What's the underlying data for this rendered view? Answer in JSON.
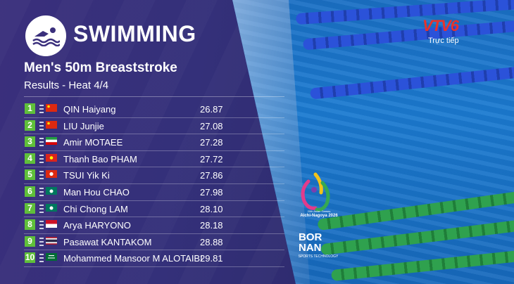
{
  "header": {
    "sport": "SWIMMING",
    "event": "Men's 50m Breaststroke",
    "stage": "Results - Heat 4/4"
  },
  "broadcaster": {
    "logo_text": "VTV6",
    "live_label": "Trực tiếp"
  },
  "games": {
    "line1": "20th Asian Games",
    "line2": "Aichi-Nagoya 2026"
  },
  "timing": {
    "brand_line1": "BOR",
    "brand_line2": "NAN",
    "tagline": "SPORTS TECHNOLOGY"
  },
  "results": [
    {
      "rank": "1",
      "name": "QIN Haiyang",
      "time": "26.87",
      "flag": "china"
    },
    {
      "rank": "2",
      "name": "LIU Junjie",
      "time": "27.08",
      "flag": "china"
    },
    {
      "rank": "3",
      "name": "Amir MOTAEE",
      "time": "27.28",
      "flag": "iran"
    },
    {
      "rank": "4",
      "name": "Thanh Bao PHAM",
      "time": "27.72",
      "flag": "vietnam"
    },
    {
      "rank": "5",
      "name": "TSUI Yik Ki",
      "time": "27.86",
      "flag": "hong-kong"
    },
    {
      "rank": "6",
      "name": "Man Hou CHAO",
      "time": "27.98",
      "flag": "macau"
    },
    {
      "rank": "7",
      "name": "Chi Chong LAM",
      "time": "28.10",
      "flag": "macau"
    },
    {
      "rank": "8",
      "name": "Arya HARYONO",
      "time": "28.18",
      "flag": "indonesia"
    },
    {
      "rank": "9",
      "name": "Pasawat KANTAKOM",
      "time": "28.88",
      "flag": "thailand"
    },
    {
      "rank": "10",
      "name": "Mohammed Mansoor M ALOTAIBI",
      "time": "29.81",
      "flag": "saudi-arabia"
    }
  ],
  "colors": {
    "panel": "#35307a",
    "rank_badge": "#5fbf3a",
    "pool": "#1a6fc4",
    "lane_blue": "#2b52d9",
    "lane_green": "#2fa14e",
    "vtv_red": "#e8322b"
  }
}
